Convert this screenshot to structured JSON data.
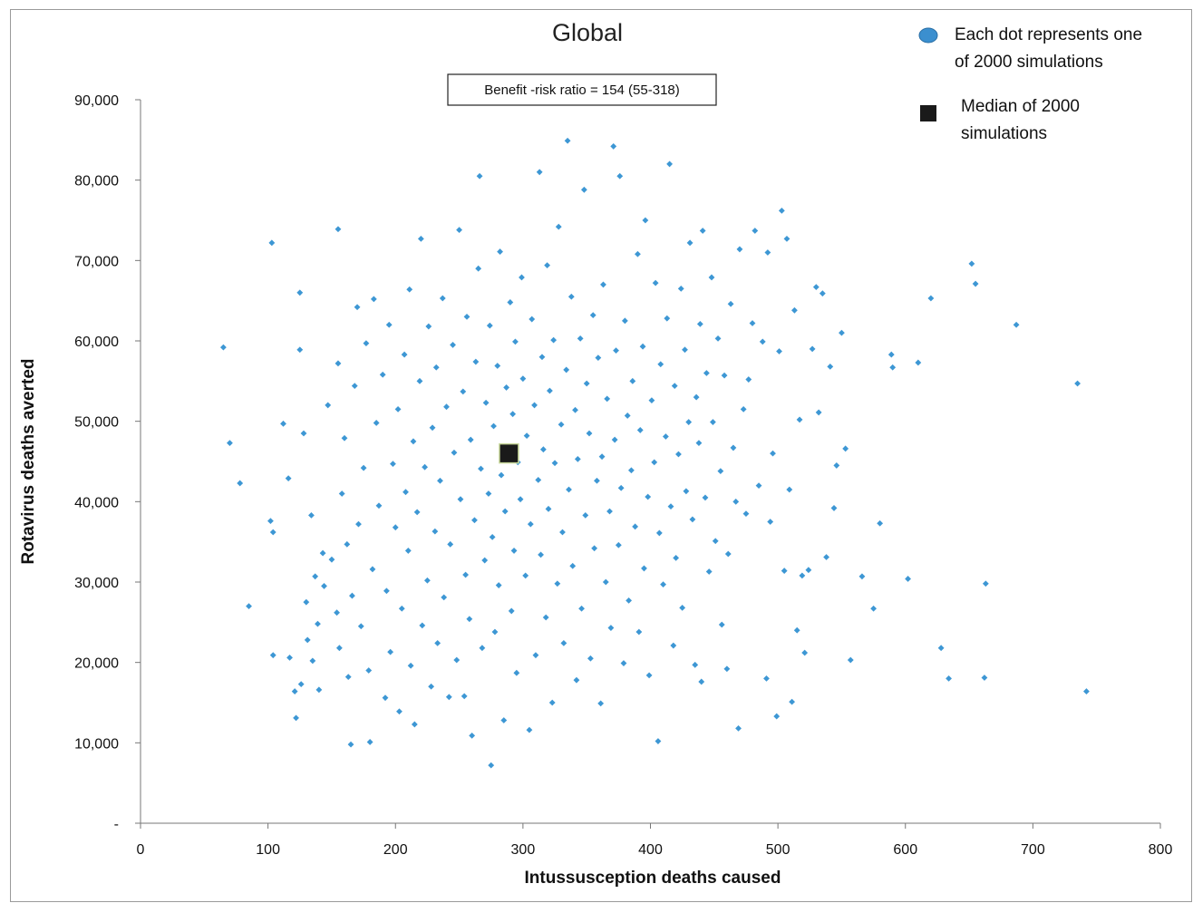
{
  "chart_data": {
    "type": "scatter",
    "title": "Global",
    "annotation": "Benefit -risk ratio = 154 (55-318)",
    "xlabel": "Intussusception deaths  caused",
    "ylabel": "Rotavirus deaths averted",
    "xlim": [
      0,
      800
    ],
    "ylim": [
      0,
      90000
    ],
    "x_ticks": [
      0,
      100,
      200,
      300,
      400,
      500,
      600,
      700,
      800
    ],
    "x_tick_labels": [
      "0",
      "100",
      "200",
      "300",
      "400",
      "500",
      "600",
      "700",
      "800"
    ],
    "y_ticks": [
      0,
      10000,
      20000,
      30000,
      40000,
      50000,
      60000,
      70000,
      80000,
      90000
    ],
    "y_tick_labels": [
      "-",
      "10,000",
      "20,000",
      "30,000",
      "40,000",
      "50,000",
      "60,000",
      "70,000",
      "80,000",
      "90,000"
    ],
    "legend": {
      "position": "top-right",
      "entries": [
        {
          "label_line1": "Each dot represents one",
          "label_line2": "of 2000 simulations",
          "marker": "ellipse",
          "color": "#3b8fcf"
        },
        {
          "label_line1": "Median of 2000",
          "label_line2": "simulations",
          "marker": "square",
          "color": "#1a1a1a"
        }
      ]
    },
    "grid": false,
    "colors": {
      "points": "#3d97d4",
      "median": "#1a1a1a",
      "median_edge": "#c8d89a"
    },
    "median": {
      "x": 289,
      "y": 46000
    },
    "series": [
      {
        "name": "Each dot represents one of 2000 simulations",
        "points": [
          [
            65,
            59200
          ],
          [
            70,
            47300
          ],
          [
            78,
            42300
          ],
          [
            85,
            27000
          ],
          [
            102,
            37600
          ],
          [
            103,
            72200
          ],
          [
            104,
            20900
          ],
          [
            104,
            36200
          ],
          [
            112,
            49700
          ],
          [
            116,
            42900
          ],
          [
            117,
            20600
          ],
          [
            121,
            16400
          ],
          [
            122,
            13100
          ],
          [
            125,
            66000
          ],
          [
            125,
            58900
          ],
          [
            126,
            17300
          ],
          [
            128,
            48500
          ],
          [
            130,
            27500
          ],
          [
            131,
            22800
          ],
          [
            134,
            38300
          ],
          [
            135,
            20200
          ],
          [
            137,
            30700
          ],
          [
            139,
            24800
          ],
          [
            140,
            16600
          ],
          [
            143,
            33600
          ],
          [
            144,
            29500
          ],
          [
            147,
            52000
          ],
          [
            150,
            32800
          ],
          [
            154,
            26200
          ],
          [
            155,
            73900
          ],
          [
            155,
            57200
          ],
          [
            156,
            21800
          ],
          [
            158,
            41000
          ],
          [
            160,
            47900
          ],
          [
            162,
            34700
          ],
          [
            163,
            18200
          ],
          [
            165,
            9800
          ],
          [
            166,
            28300
          ],
          [
            168,
            54400
          ],
          [
            170,
            64200
          ],
          [
            171,
            37200
          ],
          [
            173,
            24500
          ],
          [
            175,
            44200
          ],
          [
            177,
            59700
          ],
          [
            179,
            19000
          ],
          [
            180,
            10100
          ],
          [
            182,
            31600
          ],
          [
            183,
            65200
          ],
          [
            185,
            49800
          ],
          [
            187,
            39500
          ],
          [
            190,
            55800
          ],
          [
            192,
            15600
          ],
          [
            193,
            28900
          ],
          [
            195,
            62000
          ],
          [
            196,
            21300
          ],
          [
            198,
            44700
          ],
          [
            200,
            36800
          ],
          [
            202,
            51500
          ],
          [
            203,
            13900
          ],
          [
            205,
            26700
          ],
          [
            207,
            58300
          ],
          [
            208,
            41200
          ],
          [
            210,
            33900
          ],
          [
            211,
            66400
          ],
          [
            212,
            19600
          ],
          [
            214,
            47500
          ],
          [
            215,
            12300
          ],
          [
            217,
            38700
          ],
          [
            219,
            55000
          ],
          [
            220,
            72700
          ],
          [
            221,
            24600
          ],
          [
            223,
            44300
          ],
          [
            225,
            30200
          ],
          [
            226,
            61800
          ],
          [
            228,
            17000
          ],
          [
            229,
            49200
          ],
          [
            231,
            36300
          ],
          [
            232,
            56700
          ],
          [
            233,
            22400
          ],
          [
            235,
            42600
          ],
          [
            237,
            65300
          ],
          [
            238,
            28100
          ],
          [
            240,
            51800
          ],
          [
            242,
            15700
          ],
          [
            243,
            34700
          ],
          [
            245,
            59500
          ],
          [
            246,
            46100
          ],
          [
            248,
            20300
          ],
          [
            250,
            73800
          ],
          [
            251,
            40300
          ],
          [
            253,
            53700
          ],
          [
            254,
            15800
          ],
          [
            255,
            30900
          ],
          [
            256,
            63000
          ],
          [
            258,
            25400
          ],
          [
            259,
            47700
          ],
          [
            260,
            10900
          ],
          [
            262,
            37700
          ],
          [
            263,
            57400
          ],
          [
            265,
            69000
          ],
          [
            266,
            80500
          ],
          [
            267,
            44100
          ],
          [
            268,
            21800
          ],
          [
            270,
            32700
          ],
          [
            271,
            52300
          ],
          [
            273,
            41000
          ],
          [
            274,
            61900
          ],
          [
            275,
            7200
          ],
          [
            276,
            35600
          ],
          [
            277,
            49400
          ],
          [
            278,
            23800
          ],
          [
            280,
            56900
          ],
          [
            281,
            29600
          ],
          [
            282,
            71100
          ],
          [
            283,
            43300
          ],
          [
            285,
            12800
          ],
          [
            286,
            38800
          ],
          [
            287,
            54200
          ],
          [
            288,
            46200
          ],
          [
            290,
            64800
          ],
          [
            291,
            26400
          ],
          [
            292,
            50900
          ],
          [
            293,
            33900
          ],
          [
            294,
            59900
          ],
          [
            295,
            18700
          ],
          [
            296,
            44900
          ],
          [
            298,
            40300
          ],
          [
            299,
            67900
          ],
          [
            300,
            55300
          ],
          [
            302,
            30800
          ],
          [
            303,
            48200
          ],
          [
            305,
            11600
          ],
          [
            306,
            37200
          ],
          [
            307,
            62700
          ],
          [
            309,
            52000
          ],
          [
            310,
            20900
          ],
          [
            312,
            42700
          ],
          [
            313,
            81000
          ],
          [
            314,
            33400
          ],
          [
            315,
            58000
          ],
          [
            316,
            46500
          ],
          [
            318,
            25600
          ],
          [
            319,
            69400
          ],
          [
            320,
            39100
          ],
          [
            321,
            53800
          ],
          [
            323,
            15000
          ],
          [
            324,
            60100
          ],
          [
            325,
            44800
          ],
          [
            327,
            29800
          ],
          [
            328,
            74200
          ],
          [
            330,
            49600
          ],
          [
            331,
            36200
          ],
          [
            332,
            22400
          ],
          [
            334,
            56400
          ],
          [
            335,
            84900
          ],
          [
            336,
            41500
          ],
          [
            338,
            65500
          ],
          [
            339,
            32000
          ],
          [
            341,
            51400
          ],
          [
            342,
            17800
          ],
          [
            343,
            45300
          ],
          [
            345,
            60300
          ],
          [
            346,
            26700
          ],
          [
            348,
            78800
          ],
          [
            349,
            38300
          ],
          [
            350,
            54700
          ],
          [
            352,
            48500
          ],
          [
            353,
            20500
          ],
          [
            355,
            63200
          ],
          [
            356,
            34200
          ],
          [
            358,
            42600
          ],
          [
            359,
            57900
          ],
          [
            361,
            14900
          ],
          [
            362,
            45600
          ],
          [
            363,
            67000
          ],
          [
            365,
            30000
          ],
          [
            366,
            52800
          ],
          [
            368,
            38800
          ],
          [
            369,
            24300
          ],
          [
            371,
            84200
          ],
          [
            372,
            47700
          ],
          [
            373,
            58800
          ],
          [
            375,
            34600
          ],
          [
            376,
            80500
          ],
          [
            377,
            41700
          ],
          [
            379,
            19900
          ],
          [
            380,
            62500
          ],
          [
            382,
            50700
          ],
          [
            383,
            27700
          ],
          [
            385,
            43900
          ],
          [
            386,
            55000
          ],
          [
            388,
            36900
          ],
          [
            390,
            70800
          ],
          [
            391,
            23800
          ],
          [
            392,
            48900
          ],
          [
            394,
            59300
          ],
          [
            395,
            31700
          ],
          [
            396,
            75000
          ],
          [
            398,
            40600
          ],
          [
            399,
            18400
          ],
          [
            401,
            52600
          ],
          [
            403,
            44900
          ],
          [
            404,
            67200
          ],
          [
            406,
            10200
          ],
          [
            407,
            36100
          ],
          [
            408,
            57100
          ],
          [
            410,
            29700
          ],
          [
            412,
            48100
          ],
          [
            413,
            62800
          ],
          [
            415,
            82000
          ],
          [
            416,
            39400
          ],
          [
            418,
            22100
          ],
          [
            419,
            54400
          ],
          [
            420,
            33000
          ],
          [
            422,
            45900
          ],
          [
            424,
            66500
          ],
          [
            425,
            26800
          ],
          [
            427,
            58900
          ],
          [
            428,
            41300
          ],
          [
            430,
            49900
          ],
          [
            431,
            72200
          ],
          [
            433,
            37800
          ],
          [
            435,
            19700
          ],
          [
            436,
            53000
          ],
          [
            438,
            47300
          ],
          [
            439,
            62100
          ],
          [
            440,
            17600
          ],
          [
            441,
            73700
          ],
          [
            443,
            40500
          ],
          [
            444,
            56000
          ],
          [
            446,
            31300
          ],
          [
            448,
            67900
          ],
          [
            449,
            49900
          ],
          [
            451,
            35100
          ],
          [
            453,
            60300
          ],
          [
            455,
            43800
          ],
          [
            456,
            24700
          ],
          [
            458,
            55700
          ],
          [
            460,
            19200
          ],
          [
            461,
            33500
          ],
          [
            463,
            64600
          ],
          [
            465,
            46700
          ],
          [
            467,
            40000
          ],
          [
            469,
            11800
          ],
          [
            470,
            71400
          ],
          [
            473,
            51500
          ],
          [
            475,
            38500
          ],
          [
            477,
            55200
          ],
          [
            480,
            62200
          ],
          [
            482,
            73700
          ],
          [
            485,
            42000
          ],
          [
            488,
            59900
          ],
          [
            491,
            18000
          ],
          [
            492,
            71000
          ],
          [
            494,
            37500
          ],
          [
            496,
            46000
          ],
          [
            499,
            13300
          ],
          [
            501,
            58700
          ],
          [
            503,
            76200
          ],
          [
            505,
            31400
          ],
          [
            507,
            72700
          ],
          [
            509,
            41500
          ],
          [
            511,
            15100
          ],
          [
            513,
            63800
          ],
          [
            515,
            24000
          ],
          [
            517,
            50200
          ],
          [
            519,
            30800
          ],
          [
            521,
            21200
          ],
          [
            524,
            31500
          ],
          [
            527,
            59000
          ],
          [
            530,
            66700
          ],
          [
            532,
            51100
          ],
          [
            535,
            65900
          ],
          [
            538,
            33100
          ],
          [
            541,
            56800
          ],
          [
            544,
            39200
          ],
          [
            546,
            44500
          ],
          [
            550,
            61000
          ],
          [
            553,
            46600
          ],
          [
            557,
            20300
          ],
          [
            566,
            30700
          ],
          [
            575,
            26700
          ],
          [
            580,
            37300
          ],
          [
            589,
            58300
          ],
          [
            590,
            56700
          ],
          [
            602,
            30400
          ],
          [
            610,
            57300
          ],
          [
            620,
            65300
          ],
          [
            628,
            21800
          ],
          [
            634,
            18000
          ],
          [
            652,
            69600
          ],
          [
            655,
            67100
          ],
          [
            662,
            18100
          ],
          [
            663,
            29800
          ],
          [
            687,
            62000
          ],
          [
            735,
            54700
          ],
          [
            742,
            16400
          ]
        ]
      }
    ]
  }
}
